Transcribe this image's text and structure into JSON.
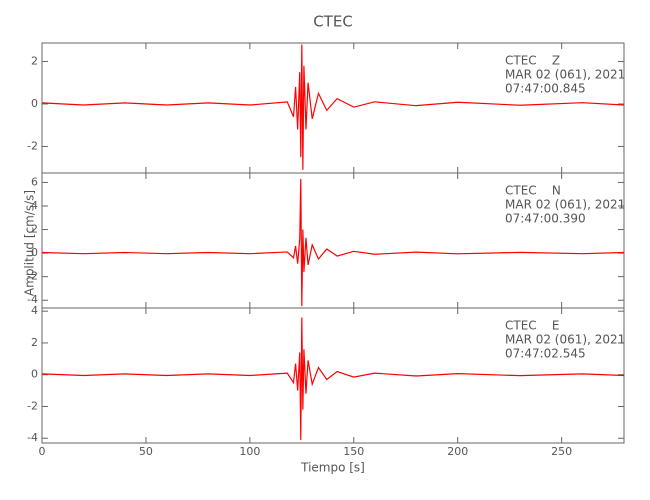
{
  "chart_data": {
    "type": "line",
    "title": "CTEC",
    "x_label": "Tiempo [s]",
    "y_label": "Amplitud [cm/s/s]",
    "xlim": [
      0,
      280
    ],
    "xticks": [
      0,
      50,
      100,
      150,
      200,
      250
    ],
    "color": "#ff0000",
    "panels": [
      {
        "annotations": [
          "CTEC    Z",
          "MAR 02 (061), 2021",
          "07:47:00.845"
        ],
        "ylim": [
          -3.25,
          2.87
        ],
        "yticks": [
          -2,
          0,
          2
        ],
        "x": [
          0,
          20,
          40,
          60,
          80,
          100,
          118,
          121,
          122,
          123,
          124,
          124.5,
          125,
          125.5,
          126,
          127,
          128,
          130,
          133,
          137,
          142,
          150,
          160,
          180,
          200,
          230,
          260,
          280
        ],
        "values": [
          0.05,
          -0.05,
          0.05,
          -0.05,
          0.05,
          -0.05,
          0.1,
          -0.6,
          0.8,
          -1.2,
          1.5,
          -2.5,
          2.8,
          -3.1,
          1.8,
          -1.2,
          1.0,
          -0.7,
          0.5,
          -0.3,
          0.25,
          -0.15,
          0.1,
          -0.08,
          0.08,
          -0.06,
          0.06,
          -0.05
        ]
      },
      {
        "annotations": [
          "CTEC    N",
          "MAR 02 (061), 2021",
          "07:47:00.390"
        ],
        "ylim": [
          -4.66,
          6.8
        ],
        "yticks": [
          -4,
          -2,
          0,
          2,
          4,
          6
        ],
        "x": [
          0,
          20,
          40,
          60,
          80,
          100,
          118,
          121,
          122,
          123,
          124,
          124.5,
          125,
          125.5,
          126,
          127,
          128,
          130,
          133,
          137,
          142,
          150,
          160,
          180,
          200,
          230,
          260,
          280
        ],
        "values": [
          0.05,
          -0.05,
          0.05,
          -0.05,
          0.05,
          -0.05,
          0.1,
          -0.4,
          0.6,
          -0.9,
          1.2,
          6.3,
          -4.5,
          2.0,
          -1.6,
          1.3,
          -1.0,
          0.7,
          -0.5,
          0.35,
          -0.25,
          0.15,
          -0.1,
          0.08,
          -0.06,
          0.06,
          -0.05,
          0.05
        ]
      },
      {
        "annotations": [
          "CTEC    E",
          "MAR 02 (061), 2021",
          "07:47:02.545"
        ],
        "ylim": [
          -4.3,
          4.2
        ],
        "yticks": [
          -4,
          -2,
          0,
          2,
          4
        ],
        "x": [
          0,
          20,
          40,
          60,
          80,
          100,
          118,
          121,
          122,
          123,
          124,
          124.5,
          125,
          125.5,
          126,
          127,
          128,
          130,
          133,
          137,
          142,
          150,
          160,
          180,
          200,
          230,
          260,
          280
        ],
        "values": [
          0.05,
          -0.05,
          0.05,
          -0.05,
          0.05,
          -0.05,
          0.1,
          -0.5,
          0.7,
          -1.0,
          1.4,
          -4.1,
          3.6,
          -2.2,
          1.6,
          -1.2,
          0.9,
          -0.6,
          0.45,
          -0.3,
          0.2,
          -0.15,
          0.1,
          -0.08,
          0.07,
          -0.06,
          0.05,
          -0.05
        ]
      }
    ]
  }
}
